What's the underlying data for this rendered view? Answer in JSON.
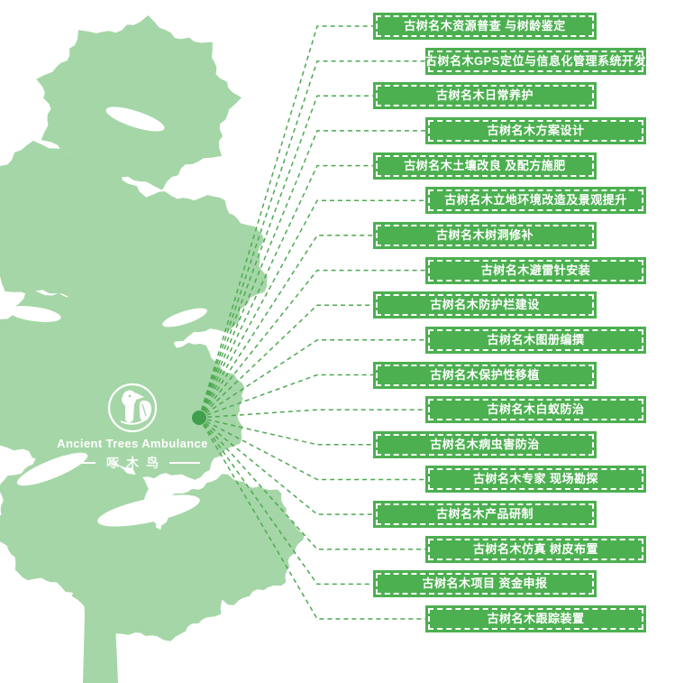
{
  "colors": {
    "box_green": "#4cb050",
    "tree_green": "#a5d6a7",
    "line_green": "#4fa952",
    "dot_green": "#3f9f4c",
    "label_text": "#ffffff"
  },
  "logo": {
    "emblem_icon": "woodpecker-icon",
    "title": "Ancient Trees Ambulance",
    "subtitle": "啄木鸟"
  },
  "services": [
    {
      "text": "古树名木资源普查 与树龄鉴定"
    },
    {
      "text": "古树名木GPS定位与信息化管理系统开发"
    },
    {
      "text": "古树名木日常养护"
    },
    {
      "text": "古树名木方案设计"
    },
    {
      "text": "古树名木土壤改良 及配方施肥"
    },
    {
      "text": "古树名木立地环境改造及景观提升"
    },
    {
      "text": "古树名木树洞修补"
    },
    {
      "text": "古树名木避雷针安装"
    },
    {
      "text": "古树名木防护栏建设"
    },
    {
      "text": "古树名木图册编撰"
    },
    {
      "text": "古树名木保护性移植"
    },
    {
      "text": "古树名木白蚁防治"
    },
    {
      "text": "古树名木病虫害防治"
    },
    {
      "text": "古树名木专家 现场勘探"
    },
    {
      "text": "古树名木产品研制"
    },
    {
      "text": "古树名木仿真 树皮布置"
    },
    {
      "text": "古树名木项目 资金申报"
    },
    {
      "text": "古树名木跟踪装置"
    }
  ]
}
